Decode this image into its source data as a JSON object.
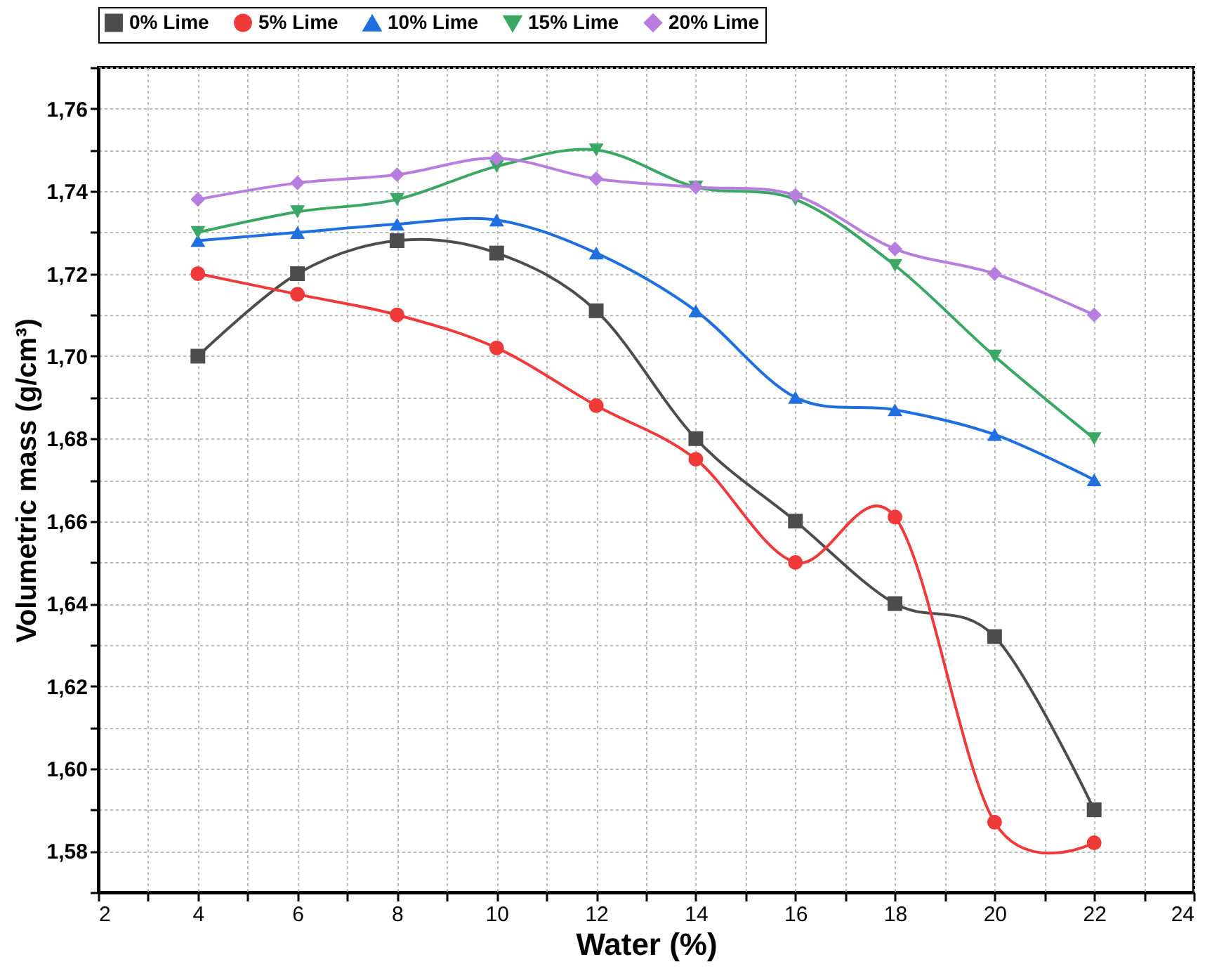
{
  "chart_data": {
    "type": "line",
    "xlabel": "Water (%)",
    "ylabel": "Volumetric mass (g/cm³)",
    "x": [
      4,
      6,
      8,
      10,
      12,
      14,
      16,
      18,
      20,
      22
    ],
    "series": [
      {
        "name": "0% Lime",
        "color": "#4d4d4d",
        "marker": "square",
        "values": [
          1.7,
          1.72,
          1.728,
          1.725,
          1.711,
          1.68,
          1.66,
          1.64,
          1.632,
          1.59
        ]
      },
      {
        "name": "5% Lime",
        "color": "#f03a3a",
        "marker": "circle",
        "values": [
          1.72,
          1.715,
          1.71,
          1.702,
          1.688,
          1.675,
          1.65,
          1.661,
          1.587,
          1.582
        ]
      },
      {
        "name": "10% Lime",
        "color": "#1f6fe0",
        "marker": "triangle",
        "values": [
          1.728,
          1.73,
          1.732,
          1.733,
          1.725,
          1.711,
          1.69,
          1.687,
          1.681,
          1.67
        ]
      },
      {
        "name": "15% Lime",
        "color": "#3aa864",
        "marker": "triangle-down",
        "values": [
          1.73,
          1.735,
          1.738,
          1.746,
          1.75,
          1.741,
          1.738,
          1.722,
          1.7,
          1.68
        ]
      },
      {
        "name": "20% Lime",
        "color": "#b77ee0",
        "marker": "diamond",
        "values": [
          1.738,
          1.742,
          1.744,
          1.748,
          1.743,
          1.741,
          1.739,
          1.726,
          1.72,
          1.71
        ]
      }
    ],
    "xlim": [
      2,
      24
    ],
    "xticks": [
      2,
      {
        "value": 3,
        "label": null
      },
      4,
      {
        "value": 5,
        "label": null
      },
      6,
      {
        "value": 7,
        "label": null
      },
      8,
      {
        "value": 9,
        "label": null
      },
      10,
      {
        "value": 11,
        "label": null
      },
      12,
      {
        "value": 13,
        "label": null
      },
      14,
      {
        "value": 15,
        "label": null
      },
      16,
      {
        "value": 17,
        "label": null
      },
      18,
      {
        "value": 19,
        "label": null
      },
      20,
      {
        "value": 21,
        "label": null
      },
      22,
      {
        "value": 23,
        "label": null
      },
      24
    ],
    "ylim": [
      1.57,
      1.77
    ],
    "yticks": [
      {
        "value": 1.57,
        "label": null
      },
      {
        "value": 1.58,
        "label": "1,58"
      },
      {
        "value": 1.59,
        "label": null
      },
      {
        "value": 1.6,
        "label": "1,60"
      },
      {
        "value": 1.61,
        "label": null
      },
      {
        "value": 1.62,
        "label": "1,62"
      },
      {
        "value": 1.63,
        "label": null
      },
      {
        "value": 1.64,
        "label": "1,64"
      },
      {
        "value": 1.65,
        "label": null
      },
      {
        "value": 1.66,
        "label": "1,66"
      },
      {
        "value": 1.67,
        "label": null
      },
      {
        "value": 1.68,
        "label": "1,68"
      },
      {
        "value": 1.69,
        "label": null
      },
      {
        "value": 1.7,
        "label": "1,70"
      },
      {
        "value": 1.71,
        "label": null
      },
      {
        "value": 1.72,
        "label": "1,72"
      },
      {
        "value": 1.73,
        "label": null
      },
      {
        "value": 1.74,
        "label": "1,74"
      },
      {
        "value": 1.75,
        "label": null
      },
      {
        "value": 1.76,
        "label": "1,76"
      },
      {
        "value": 1.77,
        "label": null
      }
    ],
    "grid": true,
    "legend": "top",
    "line_style": "solid"
  }
}
